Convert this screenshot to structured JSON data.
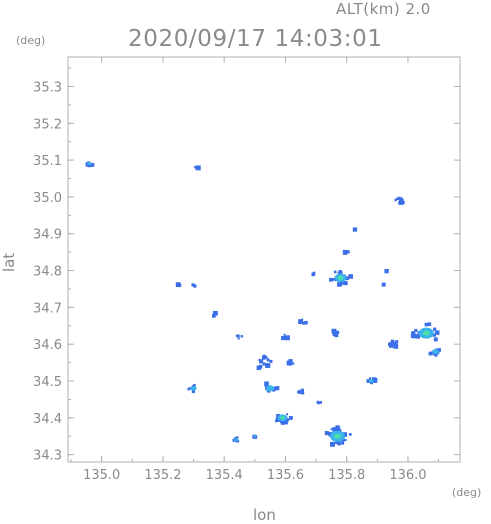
{
  "header": {
    "alt_label": "ALT(km) 2.0",
    "datetime": "2020/09/17 14:03:01"
  },
  "axes": {
    "y_unit": "(deg)",
    "x_unit": "(deg)",
    "y_label": "lat",
    "x_label": "lon"
  },
  "chart_data": {
    "type": "heatmap",
    "xlabel": "lon",
    "ylabel": "lat",
    "xlim": [
      134.89,
      136.17
    ],
    "ylim": [
      34.28,
      35.38
    ],
    "x_ticks": [
      "135.0",
      "135.2",
      "135.4",
      "135.6",
      "135.8",
      "136.0"
    ],
    "y_ticks": [
      "34.3",
      "34.4",
      "34.5",
      "34.6",
      "34.7",
      "34.8",
      "34.9",
      "35.0",
      "35.1",
      "35.2",
      "35.3"
    ],
    "colors": {
      "weak": "#3b6fe8",
      "mid": "#3ab4ea",
      "strong": "#4fe0a8",
      "frame": "#b0b0b0"
    },
    "echoes": [
      {
        "lon": 134.96,
        "lat": 35.09,
        "r": 0.012,
        "level": 1
      },
      {
        "lon": 135.31,
        "lat": 35.08,
        "r": 0.006,
        "level": 0
      },
      {
        "lon": 135.97,
        "lat": 34.99,
        "r": 0.018,
        "level": 0
      },
      {
        "lon": 135.83,
        "lat": 34.91,
        "r": 0.006,
        "level": 0
      },
      {
        "lon": 135.8,
        "lat": 34.85,
        "r": 0.008,
        "level": 0
      },
      {
        "lon": 135.78,
        "lat": 34.78,
        "r": 0.035,
        "level": 2
      },
      {
        "lon": 135.69,
        "lat": 34.79,
        "r": 0.008,
        "level": 0
      },
      {
        "lon": 135.93,
        "lat": 34.8,
        "r": 0.005,
        "level": 0
      },
      {
        "lon": 135.3,
        "lat": 34.76,
        "r": 0.008,
        "level": 0
      },
      {
        "lon": 135.25,
        "lat": 34.76,
        "r": 0.005,
        "level": 0
      },
      {
        "lon": 136.06,
        "lat": 34.63,
        "r": 0.045,
        "level": 2
      },
      {
        "lon": 136.09,
        "lat": 34.58,
        "r": 0.02,
        "level": 1
      },
      {
        "lon": 135.95,
        "lat": 34.6,
        "r": 0.018,
        "level": 0
      },
      {
        "lon": 135.76,
        "lat": 34.63,
        "r": 0.012,
        "level": 0
      },
      {
        "lon": 135.53,
        "lat": 34.55,
        "r": 0.03,
        "level": 0
      },
      {
        "lon": 135.55,
        "lat": 34.48,
        "r": 0.025,
        "level": 1
      },
      {
        "lon": 135.45,
        "lat": 34.62,
        "r": 0.01,
        "level": 0
      },
      {
        "lon": 135.66,
        "lat": 34.66,
        "r": 0.015,
        "level": 0
      },
      {
        "lon": 135.62,
        "lat": 34.55,
        "r": 0.012,
        "level": 0
      },
      {
        "lon": 135.3,
        "lat": 34.48,
        "r": 0.018,
        "level": 1
      },
      {
        "lon": 135.88,
        "lat": 34.5,
        "r": 0.014,
        "level": 1
      },
      {
        "lon": 135.59,
        "lat": 34.4,
        "r": 0.028,
        "level": 2
      },
      {
        "lon": 135.77,
        "lat": 34.35,
        "r": 0.045,
        "level": 2
      },
      {
        "lon": 135.44,
        "lat": 34.34,
        "r": 0.012,
        "level": 1
      },
      {
        "lon": 135.5,
        "lat": 34.35,
        "r": 0.008,
        "level": 1
      },
      {
        "lon": 135.65,
        "lat": 34.47,
        "r": 0.01,
        "level": 0
      },
      {
        "lon": 135.71,
        "lat": 34.44,
        "r": 0.008,
        "level": 0
      },
      {
        "lon": 135.37,
        "lat": 34.68,
        "r": 0.008,
        "level": 0
      },
      {
        "lon": 135.6,
        "lat": 34.62,
        "r": 0.01,
        "level": 0
      },
      {
        "lon": 135.92,
        "lat": 34.76,
        "r": 0.006,
        "level": 0
      }
    ]
  }
}
